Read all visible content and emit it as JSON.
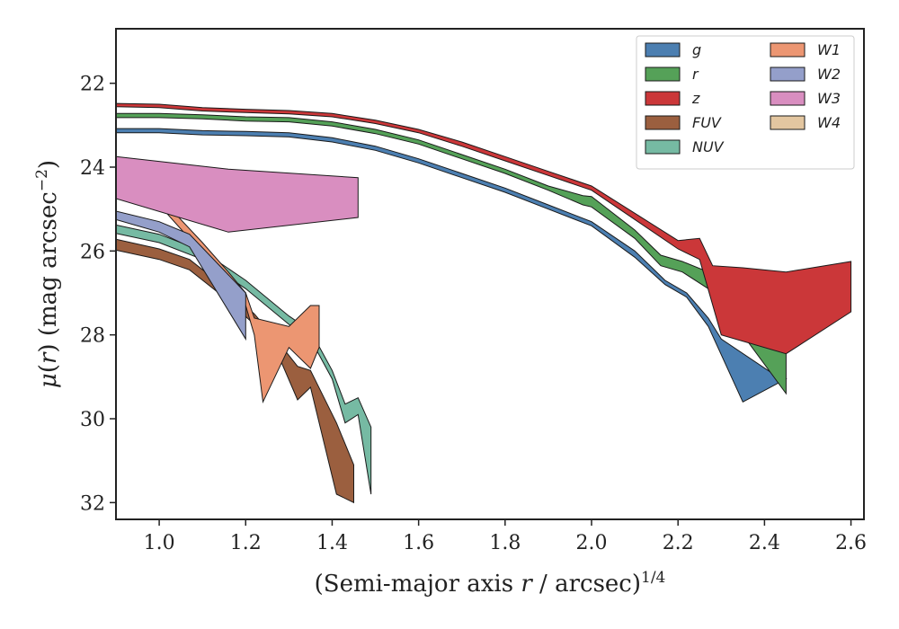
{
  "chart_data": {
    "type": "area",
    "xlabel": "(Semi-major axis r / arcsec)",
    "xlabel_parts": {
      "pre": "(Semi-major axis ",
      "var": "r",
      "post": " / arcsec)",
      "sup": "1/4"
    },
    "ylabel": "μ(r) (mag arcsec⁻²)",
    "ylabel_parts": {
      "mu": "μ",
      "open": "(",
      "var": "r",
      "close": ")",
      "rest": " (mag arcsec",
      "sup": "−2",
      "end": ")"
    },
    "xlim": [
      0.9,
      2.63
    ],
    "ylim": [
      32.4,
      20.7
    ],
    "y_inverted": true,
    "grid": false,
    "legend_placement": "top-right",
    "legend_columns": 2,
    "xticks": [
      "1.0",
      "1.2",
      "1.4",
      "1.6",
      "1.8",
      "2.0",
      "2.2",
      "2.4",
      "2.6"
    ],
    "xtick_values": [
      1.0,
      1.2,
      1.4,
      1.6,
      1.8,
      2.0,
      2.2,
      2.4,
      2.6
    ],
    "yticks": [
      "22",
      "24",
      "26",
      "28",
      "30",
      "32"
    ],
    "ytick_values": [
      22,
      24,
      26,
      28,
      30,
      32
    ],
    "series": [
      {
        "name": "g",
        "color": "#4c7fb1",
        "upper": [
          [
            0.9,
            23.08
          ],
          [
            1.0,
            23.08
          ],
          [
            1.1,
            23.13
          ],
          [
            1.2,
            23.15
          ],
          [
            1.3,
            23.18
          ],
          [
            1.4,
            23.3
          ],
          [
            1.5,
            23.5
          ],
          [
            1.6,
            23.8
          ],
          [
            1.7,
            24.15
          ],
          [
            1.8,
            24.5
          ],
          [
            1.9,
            24.9
          ],
          [
            2.0,
            25.3
          ],
          [
            2.1,
            26.0
          ],
          [
            2.17,
            26.7
          ],
          [
            2.22,
            27.0
          ],
          [
            2.27,
            27.6
          ],
          [
            2.3,
            28.1
          ],
          [
            2.43,
            29.0
          ],
          [
            2.45,
            29.05
          ]
        ],
        "lower": [
          [
            0.9,
            23.18
          ],
          [
            1.0,
            23.18
          ],
          [
            1.1,
            23.23
          ],
          [
            1.2,
            23.25
          ],
          [
            1.3,
            23.28
          ],
          [
            1.4,
            23.4
          ],
          [
            1.5,
            23.6
          ],
          [
            1.6,
            23.9
          ],
          [
            1.7,
            24.25
          ],
          [
            1.8,
            24.6
          ],
          [
            1.9,
            25.0
          ],
          [
            2.0,
            25.4
          ],
          [
            2.1,
            26.15
          ],
          [
            2.17,
            26.8
          ],
          [
            2.22,
            27.1
          ],
          [
            2.27,
            27.8
          ],
          [
            2.35,
            29.6
          ],
          [
            2.45,
            29.05
          ]
        ]
      },
      {
        "name": "r",
        "color": "#55a158",
        "upper": [
          [
            0.9,
            22.72
          ],
          [
            1.0,
            22.72
          ],
          [
            1.1,
            22.75
          ],
          [
            1.2,
            22.8
          ],
          [
            1.3,
            22.82
          ],
          [
            1.4,
            22.92
          ],
          [
            1.5,
            23.1
          ],
          [
            1.6,
            23.35
          ],
          [
            1.7,
            23.7
          ],
          [
            1.8,
            24.05
          ],
          [
            1.9,
            24.45
          ],
          [
            1.98,
            24.68
          ],
          [
            2.0,
            24.7
          ],
          [
            2.1,
            25.5
          ],
          [
            2.16,
            26.1
          ],
          [
            2.21,
            26.25
          ],
          [
            2.27,
            26.5
          ],
          [
            2.35,
            27.0
          ],
          [
            2.45,
            28.35
          ]
        ],
        "lower": [
          [
            0.9,
            22.82
          ],
          [
            1.0,
            22.82
          ],
          [
            1.1,
            22.85
          ],
          [
            1.2,
            22.9
          ],
          [
            1.3,
            22.92
          ],
          [
            1.4,
            23.02
          ],
          [
            1.5,
            23.2
          ],
          [
            1.6,
            23.45
          ],
          [
            1.7,
            23.8
          ],
          [
            1.8,
            24.15
          ],
          [
            1.9,
            24.55
          ],
          [
            1.98,
            24.9
          ],
          [
            2.0,
            24.95
          ],
          [
            2.1,
            25.7
          ],
          [
            2.16,
            26.35
          ],
          [
            2.21,
            26.5
          ],
          [
            2.27,
            26.9
          ],
          [
            2.35,
            28.0
          ],
          [
            2.45,
            29.4
          ]
        ]
      },
      {
        "name": "z",
        "color": "#cb3739",
        "upper": [
          [
            0.9,
            22.48
          ],
          [
            1.0,
            22.5
          ],
          [
            1.1,
            22.58
          ],
          [
            1.2,
            22.62
          ],
          [
            1.3,
            22.65
          ],
          [
            1.4,
            22.72
          ],
          [
            1.5,
            22.88
          ],
          [
            1.6,
            23.1
          ],
          [
            1.7,
            23.4
          ],
          [
            1.8,
            23.75
          ],
          [
            1.9,
            24.1
          ],
          [
            2.0,
            24.45
          ],
          [
            2.1,
            25.1
          ],
          [
            2.2,
            25.75
          ],
          [
            2.25,
            25.7
          ],
          [
            2.28,
            26.35
          ],
          [
            2.35,
            26.4
          ],
          [
            2.45,
            26.5
          ],
          [
            2.6,
            26.25
          ]
        ],
        "lower": [
          [
            0.9,
            22.56
          ],
          [
            1.0,
            22.58
          ],
          [
            1.1,
            22.66
          ],
          [
            1.2,
            22.7
          ],
          [
            1.3,
            22.73
          ],
          [
            1.4,
            22.8
          ],
          [
            1.5,
            22.96
          ],
          [
            1.6,
            23.18
          ],
          [
            1.7,
            23.5
          ],
          [
            1.8,
            23.85
          ],
          [
            1.9,
            24.2
          ],
          [
            2.0,
            24.55
          ],
          [
            2.1,
            25.25
          ],
          [
            2.2,
            25.95
          ],
          [
            2.25,
            26.2
          ],
          [
            2.3,
            28.0
          ],
          [
            2.45,
            28.45
          ],
          [
            2.6,
            27.45
          ]
        ]
      },
      {
        "name": "FUV",
        "color": "#9b5f3f",
        "upper": [
          [
            0.9,
            25.72
          ],
          [
            1.0,
            25.95
          ],
          [
            1.07,
            26.2
          ],
          [
            1.15,
            26.85
          ],
          [
            1.22,
            27.5
          ],
          [
            1.27,
            28.1
          ],
          [
            1.32,
            28.75
          ],
          [
            1.35,
            28.85
          ],
          [
            1.41,
            30.1
          ],
          [
            1.45,
            31.1
          ]
        ],
        "lower": [
          [
            0.9,
            25.98
          ],
          [
            1.0,
            26.2
          ],
          [
            1.07,
            26.45
          ],
          [
            1.15,
            27.1
          ],
          [
            1.22,
            27.75
          ],
          [
            1.27,
            28.35
          ],
          [
            1.32,
            29.55
          ],
          [
            1.35,
            29.25
          ],
          [
            1.41,
            31.8
          ],
          [
            1.45,
            32.0
          ]
        ]
      },
      {
        "name": "NUV",
        "color": "#76baa3",
        "upper": [
          [
            0.9,
            25.38
          ],
          [
            1.0,
            25.6
          ],
          [
            1.1,
            26.0
          ],
          [
            1.2,
            26.7
          ],
          [
            1.3,
            27.55
          ],
          [
            1.35,
            27.9
          ],
          [
            1.4,
            28.85
          ],
          [
            1.43,
            29.65
          ],
          [
            1.46,
            29.5
          ],
          [
            1.49,
            30.2
          ]
        ],
        "lower": [
          [
            0.9,
            25.58
          ],
          [
            1.0,
            25.8
          ],
          [
            1.1,
            26.2
          ],
          [
            1.2,
            26.9
          ],
          [
            1.3,
            27.75
          ],
          [
            1.35,
            28.1
          ],
          [
            1.4,
            29.05
          ],
          [
            1.43,
            30.1
          ],
          [
            1.46,
            29.9
          ],
          [
            1.49,
            31.8
          ]
        ]
      },
      {
        "name": "W1",
        "color": "#ec9672",
        "upper": [
          [
            0.9,
            24.25
          ],
          [
            1.0,
            24.7
          ],
          [
            1.1,
            25.8
          ],
          [
            1.16,
            26.5
          ],
          [
            1.2,
            27.0
          ],
          [
            1.22,
            27.6
          ],
          [
            1.3,
            27.8
          ],
          [
            1.35,
            27.3
          ],
          [
            1.37,
            27.3
          ]
        ],
        "lower": [
          [
            0.9,
            24.5
          ],
          [
            1.0,
            24.9
          ],
          [
            1.1,
            26.05
          ],
          [
            1.16,
            26.75
          ],
          [
            1.2,
            27.3
          ],
          [
            1.22,
            28.0
          ],
          [
            1.24,
            29.6
          ],
          [
            1.3,
            28.3
          ],
          [
            1.35,
            28.8
          ],
          [
            1.37,
            28.3
          ]
        ]
      },
      {
        "name": "W2",
        "color": "#949fca",
        "upper": [
          [
            0.9,
            25.05
          ],
          [
            1.0,
            25.3
          ],
          [
            1.07,
            25.6
          ],
          [
            1.2,
            27.0
          ]
        ],
        "lower": [
          [
            0.9,
            25.25
          ],
          [
            1.0,
            25.55
          ],
          [
            1.07,
            25.9
          ],
          [
            1.2,
            28.1
          ]
        ]
      },
      {
        "name": "W3",
        "color": "#d98ec0",
        "upper": [
          [
            0.9,
            23.75
          ],
          [
            1.16,
            24.05
          ],
          [
            1.46,
            24.25
          ]
        ],
        "lower": [
          [
            0.9,
            24.75
          ],
          [
            1.16,
            25.55
          ],
          [
            1.46,
            25.2
          ]
        ]
      },
      {
        "name": "W4",
        "color": "#e3c6a0",
        "upper": [],
        "lower": []
      }
    ],
    "legend": [
      {
        "label": "g",
        "color": "#4c7fb1"
      },
      {
        "label": "r",
        "color": "#55a158"
      },
      {
        "label": "z",
        "color": "#cb3739"
      },
      {
        "label": "FUV",
        "color": "#9b5f3f"
      },
      {
        "label": "NUV",
        "color": "#76baa3"
      },
      {
        "label": "W1",
        "color": "#ec9672"
      },
      {
        "label": "W2",
        "color": "#949fca"
      },
      {
        "label": "W3",
        "color": "#d98ec0"
      },
      {
        "label": "W4",
        "color": "#e3c6a0"
      }
    ]
  }
}
